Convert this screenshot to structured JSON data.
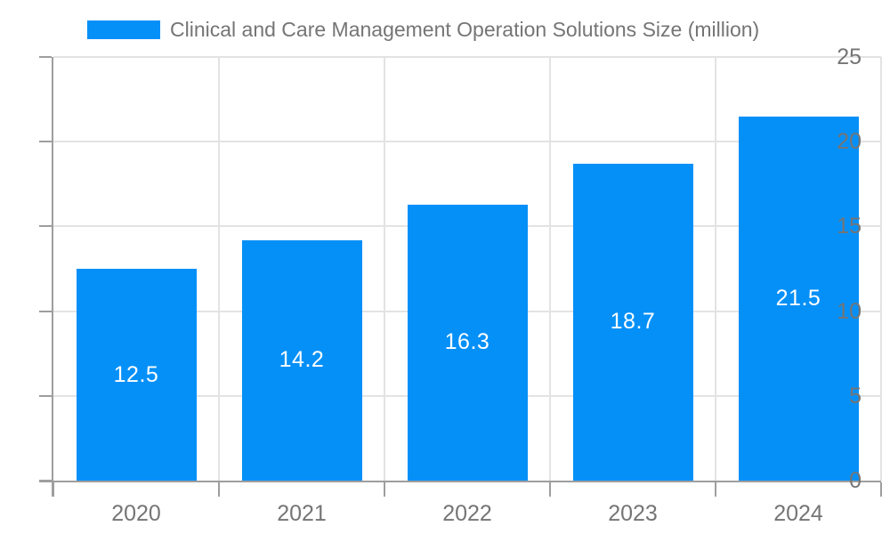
{
  "chart_data": {
    "type": "bar",
    "title": "Clinical and Care Management Operation Solutions Size (million)",
    "categories": [
      "2020",
      "2021",
      "2022",
      "2023",
      "2024"
    ],
    "values": [
      12.5,
      14.2,
      16.3,
      18.7,
      21.5
    ],
    "value_labels": [
      "12.5",
      "14.2",
      "16.3",
      "18.7",
      "21.5"
    ],
    "xlabel": "",
    "ylabel": "",
    "ylim": [
      0,
      25
    ],
    "yticks": [
      0,
      5,
      10,
      15,
      20,
      25
    ],
    "grid": true,
    "legend_position": "top",
    "colors": {
      "bar": "#0590f8",
      "bar_label_text": "#ffffff",
      "axis_line": "#9e9e9e",
      "grid_line": "#e3e3e3",
      "tick_text": "#757575",
      "legend_text": "#757575",
      "background": "#ffffff"
    }
  }
}
